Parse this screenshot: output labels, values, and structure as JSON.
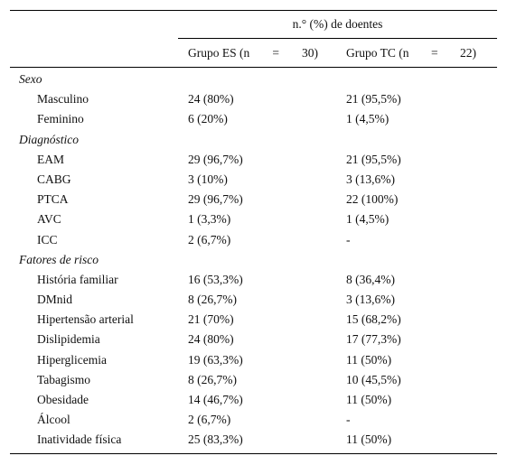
{
  "header": {
    "span_title": "n.° (%) de doentes",
    "group_es": {
      "name": "Grupo ES (n",
      "eq": "=",
      "n": "30)"
    },
    "group_tc": {
      "name": "Grupo TC (n",
      "eq": "=",
      "n": "22)"
    }
  },
  "rows": [
    {
      "type": "section",
      "label": "Sexo"
    },
    {
      "type": "item",
      "label": "Masculino",
      "es": "24 (80%)",
      "tc": "21 (95,5%)"
    },
    {
      "type": "item",
      "label": "Feminino",
      "es": "6 (20%)",
      "tc": "1 (4,5%)"
    },
    {
      "type": "section",
      "label": "Diagnóstico"
    },
    {
      "type": "item",
      "label": "EAM",
      "es": "29 (96,7%)",
      "tc": "21 (95,5%)"
    },
    {
      "type": "item",
      "label": "CABG",
      "es": "3 (10%)",
      "tc": "3 (13,6%)"
    },
    {
      "type": "item",
      "label": "PTCA",
      "es": "29 (96,7%)",
      "tc": "22 (100%)"
    },
    {
      "type": "item",
      "label": "AVC",
      "es": "1 (3,3%)",
      "tc": "1 (4,5%)"
    },
    {
      "type": "item",
      "label": "ICC",
      "es": "2 (6,7%)",
      "tc": "-"
    },
    {
      "type": "section",
      "label": "Fatores de risco"
    },
    {
      "type": "item",
      "label": "História familiar",
      "es": "16 (53,3%)",
      "tc": "8 (36,4%)"
    },
    {
      "type": "item",
      "label": "DMnid",
      "es": "8 (26,7%)",
      "tc": "3 (13,6%)"
    },
    {
      "type": "item",
      "label": "Hipertensão arterial",
      "es": "21 (70%)",
      "tc": "15 (68,2%)"
    },
    {
      "type": "item",
      "label": "Dislipidemia",
      "es": "24 (80%)",
      "tc": "17 (77,3%)"
    },
    {
      "type": "item",
      "label": "Hiperglicemia",
      "es": "19 (63,3%)",
      "tc": "11 (50%)"
    },
    {
      "type": "item",
      "label": "Tabagismo",
      "es": "8 (26,7%)",
      "tc": "10 (45,5%)"
    },
    {
      "type": "item",
      "label": "Obesidade",
      "es": "14 (46,7%)",
      "tc": "11 (50%)"
    },
    {
      "type": "item",
      "label": "Álcool",
      "es": "2 (6,7%)",
      "tc": "-"
    },
    {
      "type": "item",
      "label": "Inatividade física",
      "es": "25 (83,3%)",
      "tc": "11 (50%)"
    }
  ]
}
